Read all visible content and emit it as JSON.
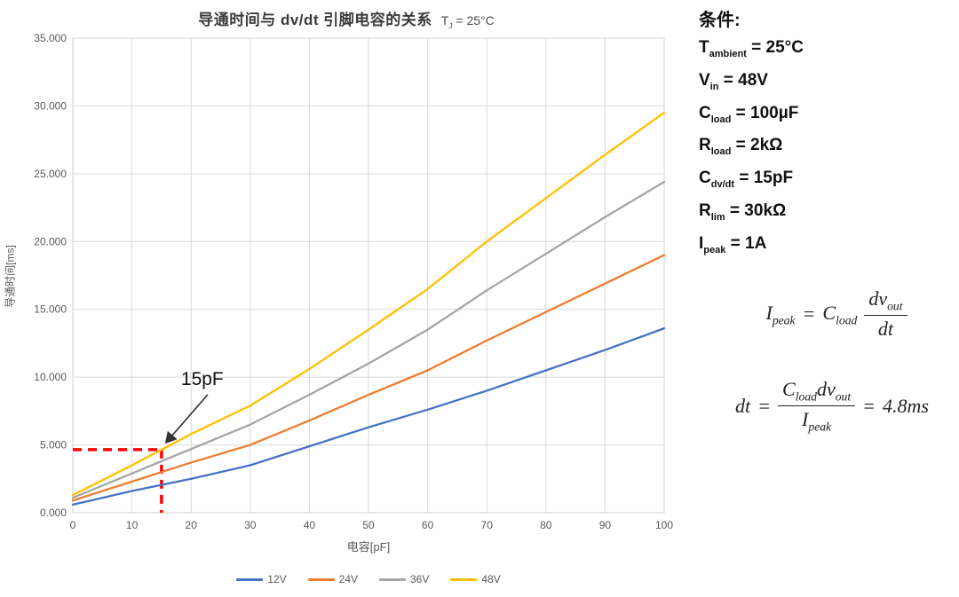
{
  "chart_data": {
    "type": "line",
    "title": "导通时间与 dv/dt 引脚电容的关系",
    "title_suffix": {
      "base": "T",
      "sub": "J",
      "rest": " = 25°C"
    },
    "xlabel": "电容[pF]",
    "ylabel": "导通时间[ms]",
    "xlim": [
      0,
      100
    ],
    "ylim": [
      0,
      35
    ],
    "x_ticks": [
      0,
      10,
      20,
      30,
      40,
      50,
      60,
      70,
      80,
      90,
      100
    ],
    "y_ticks": [
      "0.000",
      "5.000",
      "10.000",
      "15.000",
      "20.000",
      "25.000",
      "30.000",
      "35.000"
    ],
    "grid": true,
    "legend_position": "bottom",
    "grid_color": "#d9d9d9",
    "tick_color": "#595959",
    "x": [
      0,
      10,
      20,
      30,
      40,
      50,
      60,
      70,
      80,
      90,
      100
    ],
    "series": [
      {
        "name": "12V",
        "color": "#4472C4",
        "values": [
          0.6,
          1.6,
          2.5,
          3.5,
          4.9,
          6.3,
          7.6,
          9.0,
          10.5,
          12.0,
          13.6
        ]
      },
      {
        "name": "24V",
        "color": "#ED7D31",
        "values": [
          0.9,
          2.3,
          3.7,
          5.0,
          6.8,
          8.7,
          10.5,
          12.7,
          14.8,
          16.9,
          19.0
        ]
      },
      {
        "name": "36V",
        "color": "#A5A5A5",
        "values": [
          1.1,
          2.9,
          4.7,
          6.5,
          8.7,
          11.0,
          13.5,
          16.4,
          19.1,
          21.8,
          24.4
        ]
      },
      {
        "name": "48V",
        "color": "#FFC000",
        "values": [
          1.3,
          3.5,
          5.8,
          7.9,
          10.6,
          13.5,
          16.5,
          20.0,
          23.2,
          26.4,
          29.5
        ]
      }
    ],
    "annotation": {
      "label": "15pF",
      "x": 15,
      "y": 4.65,
      "dash_color": "#FF0000",
      "arrow_color": "#333333"
    }
  },
  "conditions": {
    "title": "条件:",
    "items": [
      {
        "base": "T",
        "sub": "ambient",
        "value": " = 25°C"
      },
      {
        "base": "V",
        "sub": "in",
        "value": " = 48V"
      },
      {
        "base": "C",
        "sub": "load",
        "value": "  = 100µF"
      },
      {
        "base": "R",
        "sub": "load",
        "value": " = 2kΩ"
      },
      {
        "base": "C",
        "sub": "dv/dt",
        "value": " = 15pF"
      },
      {
        "base": "R",
        "sub": "lim",
        "value": " = 30kΩ"
      },
      {
        "base": "I",
        "sub": "peak",
        "value": " = 1A"
      }
    ]
  },
  "formulas": {
    "f1": {
      "lhs": "I",
      "lhs_sub": "peak",
      "eq": "=",
      "coeff": "C",
      "coeff_sub": "load",
      "num": "dv",
      "num_sub": "out",
      "den": "dt"
    },
    "f2": {
      "lhs": "dt",
      "eq": "=",
      "num1": "C",
      "num1_sub": "load",
      "num2": "dv",
      "num2_sub": "out",
      "den": "I",
      "den_sub": "peak",
      "result_eq": "=",
      "result": "4.8ms"
    }
  }
}
